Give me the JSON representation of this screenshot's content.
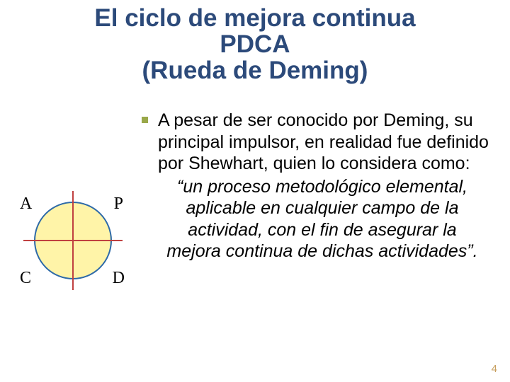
{
  "title": {
    "line1": "El ciclo de mejora continua",
    "line2": "PDCA",
    "line3": "(Rueda de Deming)",
    "color": "#2c4a7a",
    "fontsize": 35
  },
  "diagram": {
    "type": "pie",
    "shape": "circle-4-quadrants",
    "fill_color": "#fff4a8",
    "border_color": "#2e6aa8",
    "cross_color": "#c04040",
    "labels": {
      "top_left": "A",
      "top_right": "P",
      "bottom_left": "C",
      "bottom_right": "D"
    },
    "label_font": "Times New Roman",
    "label_fontsize": 24
  },
  "bullet": {
    "color": "#9aa84a"
  },
  "body": {
    "intro": "A pesar de ser conocido por Deming, su principal impulsor, en realidad fue definido por Shewhart, quien lo considera como:",
    "quote": "“un proceso metodológico elemental, aplicable en cualquier campo de la actividad, con el fin de asegurar la mejora continua de dichas actividades”.",
    "fontsize": 25
  },
  "page_number": "4",
  "page_number_color": "#c8a060"
}
